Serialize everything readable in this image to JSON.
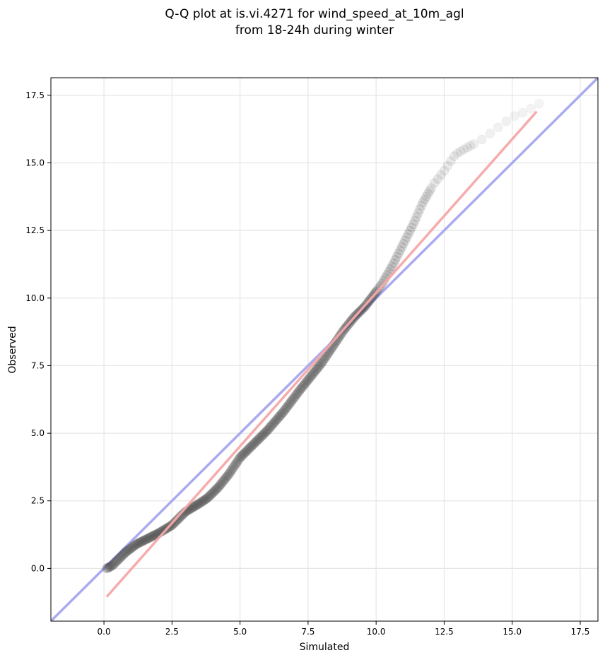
{
  "chart_data": {
    "type": "scatter",
    "title": [
      "Q-Q plot at is.vi.4271 for wind_speed_at_10m_agl",
      "from 18-24h during winter"
    ],
    "xlabel": "Simulated",
    "ylabel": "Observed",
    "xlim": [
      -1.95,
      18.15
    ],
    "ylim": [
      -1.95,
      18.15
    ],
    "xticks": [
      0.0,
      2.5,
      5.0,
      7.5,
      10.0,
      12.5,
      15.0,
      17.5
    ],
    "yticks": [
      0.0,
      2.5,
      5.0,
      7.5,
      10.0,
      12.5,
      15.0,
      17.5
    ],
    "xtick_labels": [
      "0.0",
      "2.5",
      "5.0",
      "7.5",
      "10.0",
      "12.5",
      "15.0",
      "17.5"
    ],
    "ytick_labels": [
      "0.0",
      "2.5",
      "5.0",
      "7.5",
      "10.0",
      "12.5",
      "15.0",
      "17.5"
    ],
    "grid": true,
    "quantile_curve": [
      [
        0.1,
        0.0
      ],
      [
        0.3,
        0.1
      ],
      [
        0.5,
        0.3
      ],
      [
        0.8,
        0.6
      ],
      [
        1.2,
        0.9
      ],
      [
        1.6,
        1.1
      ],
      [
        2.0,
        1.3
      ],
      [
        2.5,
        1.6
      ],
      [
        3.0,
        2.1
      ],
      [
        3.5,
        2.4
      ],
      [
        3.8,
        2.6
      ],
      [
        4.2,
        3.0
      ],
      [
        4.6,
        3.5
      ],
      [
        5.0,
        4.1
      ],
      [
        5.5,
        4.6
      ],
      [
        6.0,
        5.1
      ],
      [
        6.6,
        5.8
      ],
      [
        7.2,
        6.6
      ],
      [
        7.6,
        7.1
      ],
      [
        8.0,
        7.6
      ],
      [
        8.4,
        8.2
      ],
      [
        8.8,
        8.8
      ],
      [
        9.2,
        9.3
      ],
      [
        9.6,
        9.7
      ],
      [
        9.9,
        10.1
      ],
      [
        10.2,
        10.5
      ],
      [
        10.6,
        11.2
      ],
      [
        11.0,
        12.0
      ],
      [
        11.4,
        12.8
      ],
      [
        11.7,
        13.5
      ],
      [
        12.1,
        14.2
      ],
      [
        12.5,
        14.7
      ],
      [
        12.9,
        15.3
      ],
      [
        13.4,
        15.6
      ],
      [
        13.8,
        15.8
      ],
      [
        14.2,
        16.1
      ],
      [
        14.6,
        16.4
      ],
      [
        15.0,
        16.7
      ],
      [
        15.5,
        16.9
      ],
      [
        16.0,
        17.2
      ]
    ],
    "identity_line": {
      "color": "#aaaaf0"
    },
    "fit_line": {
      "x": [
        0.1,
        15.9
      ],
      "y": [
        -1.05,
        16.9
      ],
      "color": "#f5a8a8"
    },
    "point_color": "#404040"
  }
}
